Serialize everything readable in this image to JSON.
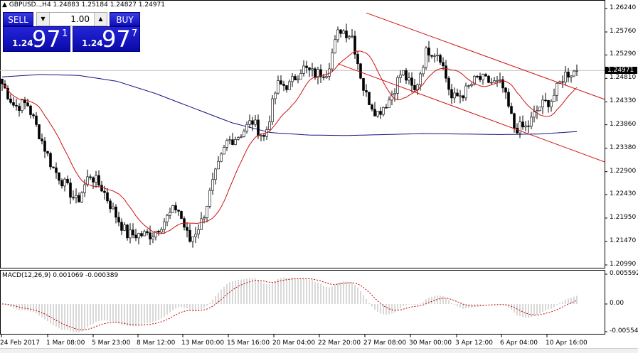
{
  "header": {
    "symbol_line": "GBPUSD..,H4  1.24883 1.25184 1.24827 1.24971"
  },
  "trade_panel": {
    "sell_label": "SELL",
    "buy_label": "BUY",
    "lot": "1.00",
    "sell_price": {
      "big": "1.24",
      "main": "97",
      "pip": "1"
    },
    "buy_price": {
      "big": "1.24",
      "main": "97",
      "pip": "7"
    }
  },
  "colors": {
    "candles": "#000000",
    "fast_ma": "#d01010",
    "slow_ma": "#101080",
    "channel": "#d01010",
    "macd_hist": "#b0b0b0",
    "macd_signal": "#c00000",
    "panel_bg": "#1a1ad0"
  },
  "chart_data": [
    {
      "type": "candlestick",
      "symbol": "GBPUSD",
      "timeframe": "H4",
      "yticks": [
        "1.26240",
        "1.25760",
        "1.25290",
        "1.24810",
        "1.24330",
        "1.23860",
        "1.23380",
        "1.22900",
        "1.22430",
        "1.21950",
        "1.21470",
        "1.20990"
      ],
      "ylim": [
        1.2099,
        1.2624
      ],
      "current_price": "1.24971",
      "xticks": [
        "24 Feb 2017",
        "1 Mar 08:00",
        "5 Mar 23:00",
        "8 Mar 12:00",
        "13 Mar 00:00",
        "15 Mar 16:00",
        "20 Mar 04:00",
        "22 Mar 20:00",
        "27 Mar 08:00",
        "30 Mar 00:00",
        "3 Apr 12:00",
        "6 Apr 04:00",
        "10 Apr 16:00"
      ],
      "close_path": [
        1.247,
        1.2423,
        1.243,
        1.2365,
        1.23,
        1.2264,
        1.2227,
        1.2285,
        1.2256,
        1.2205,
        1.2161,
        1.2161,
        1.2161,
        1.219,
        1.2219,
        1.2147,
        1.219,
        1.2278,
        1.2351,
        1.2365,
        1.2394,
        1.2358,
        1.2467,
        1.2467,
        1.2503,
        1.2489,
        1.2496,
        1.2583,
        1.2569,
        1.2452,
        1.2409,
        1.2438,
        1.2496,
        1.2452,
        1.254,
        1.2532,
        1.2438,
        1.2452,
        1.2481,
        1.2474,
        1.2467,
        1.238,
        1.238,
        1.2423,
        1.2438,
        1.2489,
        1.2497
      ],
      "slow_ma_path": [
        1.2484,
        1.2489,
        1.2487,
        1.2475,
        1.245,
        1.242,
        1.239,
        1.237,
        1.2365,
        1.2364,
        1.2366,
        1.2368,
        1.2367,
        1.2366,
        1.2367,
        1.2372
      ],
      "channel": {
        "upper": [
          1.2615,
          1.2438
        ],
        "lower": [
          1.2511,
          1.231
        ]
      }
    },
    {
      "type": "macd",
      "label": "MACD(12,26,9) 0.001069 -0.000389",
      "yticks": [
        "0.005592",
        "0.00",
        "-0.005549"
      ],
      "ylim": [
        -0.005549,
        0.005592
      ]
    }
  ]
}
